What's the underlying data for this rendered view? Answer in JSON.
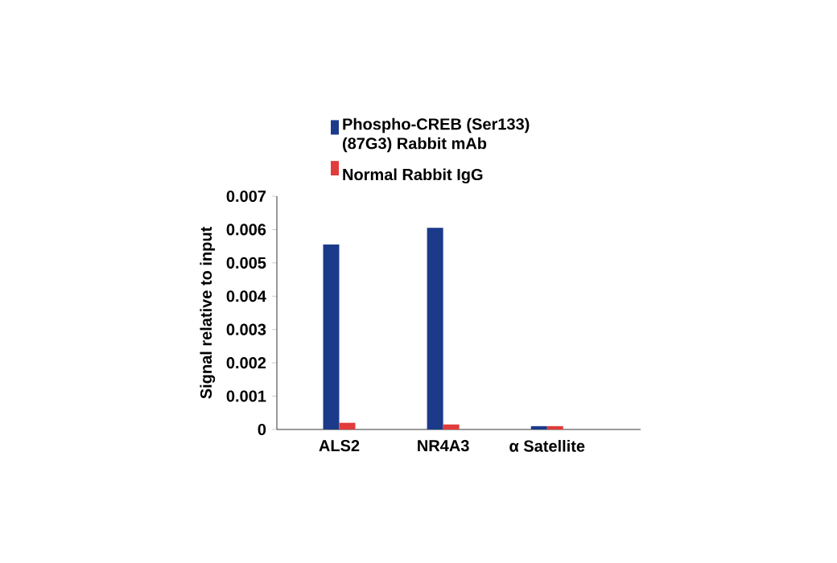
{
  "chart_data": {
    "type": "bar",
    "categories": [
      "ALS2",
      "NR4A3",
      "α Satellite"
    ],
    "ylabel": "Signal relative to input",
    "ylim": [
      0,
      0.007
    ],
    "yticks": [
      0,
      0.001,
      0.002,
      0.003,
      0.004,
      0.005,
      0.006,
      0.007
    ],
    "legend": "top",
    "series": [
      {
        "name": "Phospho-CREB (Ser133) (87G3) Rabbit mAb",
        "color": "#1c3a8a",
        "values": [
          0.00555,
          0.00605,
          0.0001
        ]
      },
      {
        "name": "Normal Rabbit IgG",
        "color": "#e23b3b",
        "values": [
          0.0002,
          0.00015,
          0.0001
        ]
      }
    ]
  }
}
